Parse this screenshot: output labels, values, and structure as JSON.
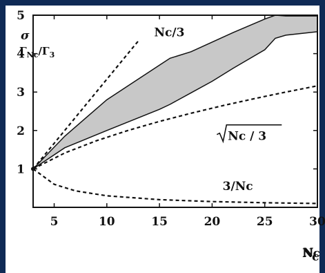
{
  "chart_data": {
    "type": "line",
    "title": "",
    "xlabel": "Nc",
    "ylabel": "",
    "xlim": [
      3,
      30
    ],
    "ylim": [
      0,
      5
    ],
    "x_ticks": [
      "5",
      "10",
      "15",
      "20",
      "25",
      "30"
    ],
    "y_ticks": [
      "1",
      "2",
      "3",
      "4",
      "5"
    ],
    "grid": false,
    "ylabel_annotation": {
      "sigma": "σ",
      "ratio": "Γ",
      "sub_a": "Nc",
      "slash": "/",
      "sub_b": "3"
    },
    "series": [
      {
        "name": "Nc/3",
        "style": "dashed",
        "x": [
          3,
          6,
          9,
          12,
          13
        ],
        "y": [
          1,
          2,
          3,
          4,
          4.3333
        ]
      },
      {
        "name": "√Nc/3",
        "style": "dashed",
        "x": [
          3,
          6,
          9,
          12,
          15,
          18,
          21,
          24,
          27,
          30
        ],
        "y": [
          1,
          1.414,
          1.732,
          2.0,
          2.236,
          2.449,
          2.646,
          2.828,
          3.0,
          3.162
        ]
      },
      {
        "name": "3/Nc",
        "style": "dashed",
        "x": [
          3,
          5,
          7,
          10,
          15,
          20,
          25,
          30
        ],
        "y": [
          1,
          0.6,
          0.43,
          0.3,
          0.2,
          0.15,
          0.12,
          0.1
        ]
      }
    ],
    "band": {
      "x": [
        3,
        6,
        10,
        15,
        16,
        18,
        20,
        22,
        25,
        26,
        27,
        30
      ],
      "upper": [
        1,
        1.85,
        2.8,
        3.7,
        3.88,
        4.05,
        4.3,
        4.55,
        4.9,
        5.0,
        4.98,
        4.98
      ],
      "lower": [
        1,
        1.55,
        2.0,
        2.55,
        2.68,
        2.98,
        3.28,
        3.62,
        4.1,
        4.4,
        4.48,
        4.57
      ]
    },
    "annotations": [
      {
        "name": "label-nc-over-3",
        "text": "Nc/3",
        "x": 14.5,
        "y": 4.45
      },
      {
        "name": "label-sqrt-nc-over-3",
        "text": "Nc / 3",
        "x": 21.5,
        "y": 1.75
      },
      {
        "name": "label-3-over-nc",
        "text": "3/Nc",
        "x": 21,
        "y": 0.45
      }
    ],
    "colors": {
      "band": "#c8c8c8",
      "line": "#111111",
      "background": "#0f2a55"
    }
  }
}
